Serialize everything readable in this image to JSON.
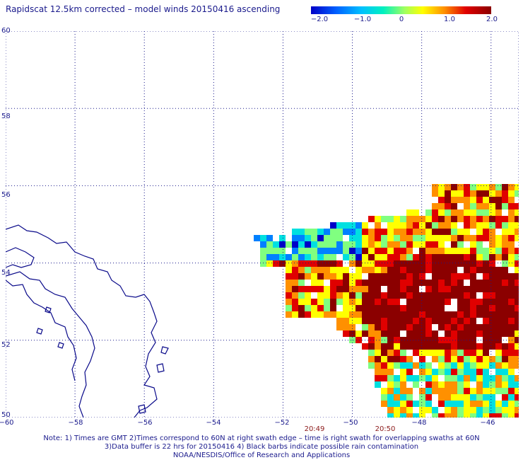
{
  "title": "Rapidscat 12.5km corrected – model winds 20150416 ascending",
  "colorbar": {
    "ticks": [
      "−2.0",
      "−1.0",
      "0",
      "1.0",
      "2.0"
    ],
    "range": [
      -2.0,
      2.0
    ]
  },
  "axes": {
    "lat_labels": [
      "60",
      "58",
      "56",
      "54",
      "52",
      "50"
    ],
    "lon_labels": [
      "−60",
      "−58",
      "−56",
      "−54",
      "−52",
      "−50",
      "−48",
      "−46"
    ],
    "lat_range": [
      50,
      60
    ],
    "lon_range": [
      -60,
      -45.2
    ],
    "grid": true
  },
  "times": [
    "20:49",
    "20:50"
  ],
  "notes": [
    "Note: 1) Times are GMT 2)Times correspond to 60N at right swath edge – time is right swath for overlapping swaths at 60N",
    "3)Data buffer is 22 hrs for 20150416 4) Black barbs indicate possible rain contamination",
    "NOAA/NESDIS/Office of Research and Applications"
  ],
  "colors": {
    "text": "#1a1a8c",
    "coast": "#0a0a8a",
    "time": "#8b1a1a",
    "colormap": [
      "#0000c8",
      "#0080ff",
      "#00e0e0",
      "#80ff80",
      "#ffff00",
      "#ff9000",
      "#e00000",
      "#8b0000"
    ]
  }
}
